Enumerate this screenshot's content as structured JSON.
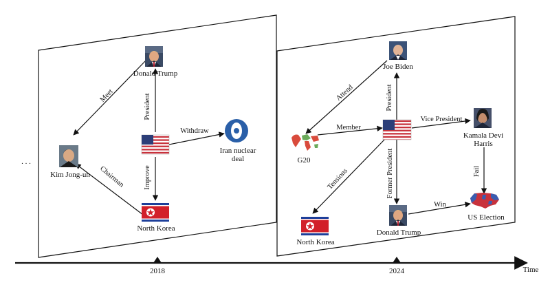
{
  "timeline": {
    "axis_label": "Time",
    "ellipsis": ". . .",
    "ticks": [
      "2018",
      "2024"
    ]
  },
  "panel_2018": {
    "nodes": {
      "trump": "Donald  Trump",
      "kim": "Kim Jong-un",
      "iran_line1": "Iran nuclear",
      "iran_line2": "deal",
      "north_korea": "North Korea"
    },
    "edges": {
      "meet": "Meet",
      "president": "President",
      "withdraw": "Withdraw",
      "improve": "Improve",
      "chairman": "Chairman"
    }
  },
  "panel_2024": {
    "nodes": {
      "biden": "Joe Biden",
      "g20": "G20",
      "harris_line1": "Kamala Devi",
      "harris_line2": "Harris",
      "north_korea": "North Korea",
      "trump": "Donald  Trump",
      "us_election": "US Election"
    },
    "edges": {
      "attend": "Attend",
      "president": "President",
      "member": "Member",
      "vice_president": "Vice President",
      "tensions": "Tensions",
      "former_president": "Former President",
      "win": "Win",
      "fail": "Fail"
    }
  },
  "colors": {
    "us_flag_red": "#c8323c",
    "us_flag_blue": "#2c3e78",
    "nk_flag_blue": "#1e3f9a",
    "nk_flag_red": "#d2202a",
    "iran_logo_blue": "#2a5fa8",
    "g20_red": "#d94b3c",
    "g20_green": "#6aaa5a",
    "election_red": "#c8323c",
    "election_blue": "#3a5db0"
  }
}
